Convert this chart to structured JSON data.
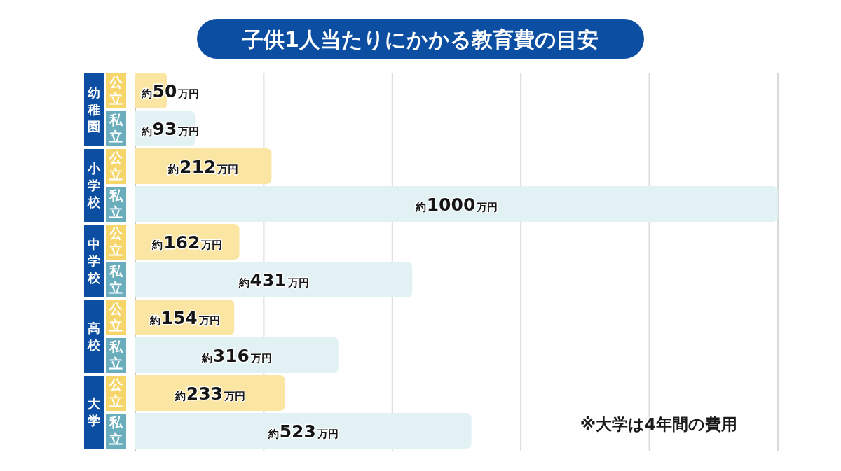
{
  "chart_data": {
    "type": "bar",
    "orientation": "horizontal",
    "title": "子供1人当たりにかかる教育費の目安",
    "categories": [
      "幼稚園",
      "小学校",
      "中学校",
      "高校",
      "大学"
    ],
    "series": [
      {
        "name": "公立",
        "color": "#fae6a2",
        "values": [
          50,
          212,
          162,
          154,
          233
        ],
        "value_labels": [
          "約50万円",
          "約212万円",
          "約162万円",
          "約154万円",
          "約233万円"
        ]
      },
      {
        "name": "私立",
        "color": "#e2f1f4",
        "values": [
          93,
          1000,
          431,
          316,
          523
        ],
        "value_labels": [
          "約93万円",
          "約1000万円",
          "約431万円",
          "約316万円",
          "約523万円"
        ]
      }
    ],
    "xlim": [
      0,
      1000
    ],
    "xticks": [
      {
        "value": 0,
        "label": null
      },
      {
        "value": 200,
        "label": null
      },
      {
        "value": 400,
        "label": null
      },
      {
        "value": 600,
        "label": null
      },
      {
        "value": 800,
        "label": null
      },
      {
        "value": 1000,
        "label": null
      }
    ],
    "grid": "x",
    "tick_labels": "y",
    "annotations": [
      "※大学は4年間の費用"
    ]
  }
}
